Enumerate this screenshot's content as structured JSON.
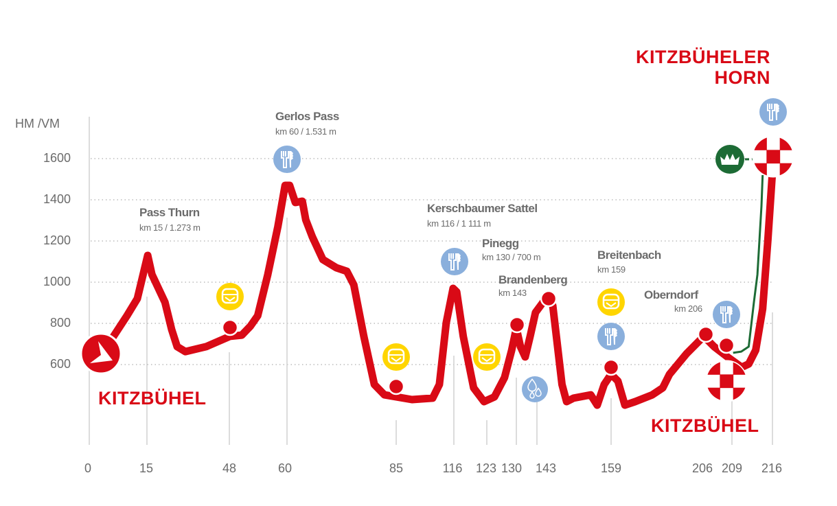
{
  "chart_data": {
    "type": "area",
    "title": "",
    "ylabel": "HM /VM",
    "xlabel": "",
    "yticks": [
      600,
      800,
      1000,
      1200,
      1400,
      1600
    ],
    "xticks": [
      "0",
      "15",
      "48",
      "60",
      "85",
      "116",
      "123",
      "130",
      "143",
      "159",
      "206",
      "209",
      "216"
    ],
    "grid": "horizontal dotted",
    "colors": {
      "route": "#d90a16",
      "cable_car": "#1d6b35",
      "restaurant": "#8aafdc",
      "bus": "#ffd500",
      "text": "#6b6b6b"
    },
    "series": [
      {
        "points_km_m": [
          [
            3,
            653
          ],
          [
            6.3,
            737
          ],
          [
            9.8,
            837
          ],
          [
            12.5,
            920
          ],
          [
            15.3,
            1130
          ],
          [
            17,
            1037
          ],
          [
            22.2,
            903
          ],
          [
            24.9,
            770
          ],
          [
            27.1,
            687
          ],
          [
            30.4,
            663
          ],
          [
            38.7,
            687
          ],
          [
            48.1,
            737
          ],
          [
            50.6,
            743
          ],
          [
            52.4,
            787
          ],
          [
            53.9,
            837
          ],
          [
            56,
            1037
          ],
          [
            58.1,
            1270
          ],
          [
            59.6,
            1470
          ],
          [
            60.6,
            1470
          ],
          [
            61.9,
            1387
          ],
          [
            63.5,
            1393
          ],
          [
            64.3,
            1303
          ],
          [
            65.8,
            1220
          ],
          [
            68.2,
            1110
          ],
          [
            71.3,
            1070
          ],
          [
            73.7,
            1053
          ],
          [
            75.3,
            987
          ],
          [
            77.6,
            737
          ],
          [
            80,
            503
          ],
          [
            82.3,
            453
          ],
          [
            93.5,
            430
          ],
          [
            104.6,
            437
          ],
          [
            108.2,
            503
          ],
          [
            111.9,
            803
          ],
          [
            115.6,
            970
          ],
          [
            116.6,
            953
          ],
          [
            118,
            737
          ],
          [
            120.2,
            487
          ],
          [
            122.4,
            420
          ],
          [
            124.8,
            443
          ],
          [
            127.2,
            537
          ],
          [
            128.9,
            670
          ],
          [
            130,
            777
          ],
          [
            132.6,
            687
          ],
          [
            135.6,
            637
          ],
          [
            138.7,
            737
          ],
          [
            142.1,
            853
          ],
          [
            144.9,
            920
          ],
          [
            146.4,
            887
          ],
          [
            147.2,
            737
          ],
          [
            148.4,
            503
          ],
          [
            149.4,
            420
          ],
          [
            150.9,
            437
          ],
          [
            154.6,
            453
          ],
          [
            156,
            403
          ],
          [
            157.5,
            503
          ],
          [
            159,
            553
          ],
          [
            162.4,
            520
          ],
          [
            165.9,
            403
          ],
          [
            171,
            420
          ],
          [
            179.6,
            453
          ],
          [
            184.8,
            487
          ],
          [
            188.2,
            553
          ],
          [
            196.7,
            653
          ],
          [
            205.3,
            737
          ],
          [
            207,
            687
          ],
          [
            208.5,
            637
          ],
          [
            210.7,
            587
          ],
          [
            211.9,
            603
          ],
          [
            213.1,
            670
          ],
          [
            214.3,
            870
          ],
          [
            215.2,
            1203
          ],
          [
            216,
            1537
          ]
        ]
      },
      {
        "points_km_m": [
          [
            209.2,
            657
          ],
          [
            210.6,
            663
          ],
          [
            211.9,
            687
          ],
          [
            212.8,
            903
          ],
          [
            213.4,
            1037
          ],
          [
            214.1,
            1370
          ],
          [
            214.3,
            1520
          ]
        ]
      }
    ],
    "waypoints": [
      {
        "name": "Pass Thurn",
        "sub": "km 15 / 1.273 m"
      },
      {
        "name": "Gerlos Pass",
        "sub": "km 60 / 1.531 m"
      },
      {
        "name": "Kerschbaumer Sattel",
        "sub": "km 116 / 1 111 m"
      },
      {
        "name": "Pinegg",
        "sub": "km 130 / 700 m"
      },
      {
        "name": "Brandenberg",
        "sub": "km 143"
      },
      {
        "name": "Breitenbach",
        "sub": "km 159"
      },
      {
        "name": "Oberndorf",
        "sub": "km 206"
      }
    ],
    "start_label": "KITZBÜHEL",
    "finish_label": "KITZBÜHEL",
    "summit_label_1": "KITZBÜHELER",
    "summit_label_2": "HORN",
    "icons": [
      "restaurant-icon",
      "bus-icon",
      "water-icon",
      "crown-icon",
      "checkered-flag-icon",
      "start-arrow-icon"
    ]
  }
}
